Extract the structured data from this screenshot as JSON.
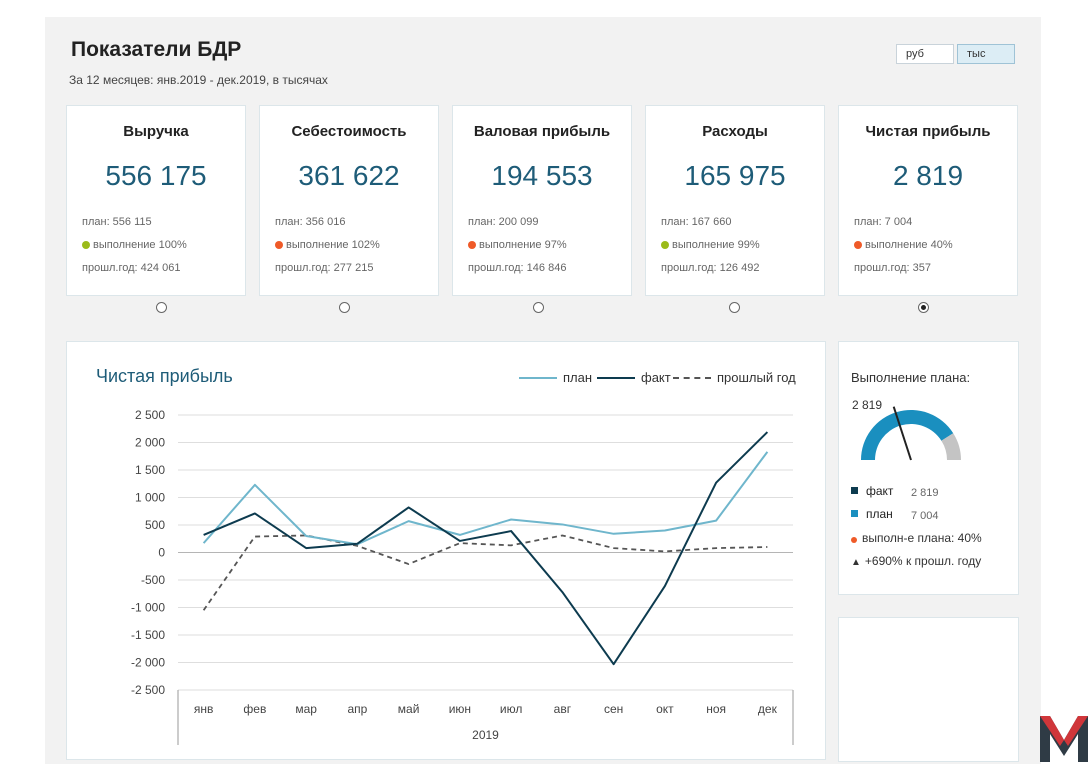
{
  "header": {
    "title": "Показатели БДР",
    "subtitle": "За 12 месяцев: янв.2019 - дек.2019, в тысячах"
  },
  "units": [
    {
      "label": "руб",
      "active": false
    },
    {
      "label": "тыс",
      "active": true
    }
  ],
  "colors": {
    "plan": "#6fb6cc",
    "fact": "#0d3b4f",
    "prev": "#555555",
    "gauge_fill": "#1a8fbf",
    "gauge_rest": "#c4c4c4",
    "ok": "#9bbb1a",
    "bad": "#ef5a28",
    "value": "#1e5c78"
  },
  "kpis": [
    {
      "title": "Выручка",
      "value": "556 175",
      "plan": "план: 556 115",
      "completion": "выполнение 100%",
      "status": "ok",
      "prev": "прошл.год: 424 061",
      "selected": false
    },
    {
      "title": "Себестоимость",
      "value": "361 622",
      "plan": "план: 356 016",
      "completion": "выполнение 102%",
      "status": "bad",
      "prev": "прошл.год: 277 215",
      "selected": false
    },
    {
      "title": "Валовая прибыль",
      "value": "194 553",
      "plan": "план: 200 099",
      "completion": "выполнение 97%",
      "status": "bad",
      "prev": "прошл.год: 146 846",
      "selected": false
    },
    {
      "title": "Расходы",
      "value": "165 975",
      "plan": "план: 167 660",
      "completion": "выполнение 99%",
      "status": "ok",
      "prev": "прошл.год: 126 492",
      "selected": false
    },
    {
      "title": "Чистая прибыль",
      "value": "2 819",
      "plan": "план: 7 004",
      "completion": "выполнение 40%",
      "status": "bad",
      "prev": "прошл.год: 357",
      "selected": true
    }
  ],
  "chart_data": {
    "type": "line",
    "title": "Чистая прибыль",
    "categories": [
      "янв",
      "фев",
      "мар",
      "апр",
      "май",
      "июн",
      "июл",
      "авг",
      "сен",
      "окт",
      "ноя",
      "дек"
    ],
    "xlabel": "2019",
    "ylim": [
      -2500,
      2500
    ],
    "yticks": [
      2500,
      2000,
      1500,
      1000,
      500,
      0,
      -500,
      -1000,
      -1500,
      -2000,
      -2500
    ],
    "ytick_labels": [
      "2 500",
      "2 000",
      "1 500",
      "1 000",
      "500",
      "0",
      "-500",
      "-1 000",
      "-1 500",
      "-2 000",
      "-2 500"
    ],
    "grid": true,
    "legend": "top-right",
    "series": [
      {
        "name": "план",
        "values": [
          170,
          1230,
          300,
          150,
          570,
          320,
          600,
          510,
          340,
          400,
          580,
          1830
        ]
      },
      {
        "name": "факт",
        "values": [
          320,
          710,
          80,
          160,
          820,
          210,
          390,
          -720,
          -2030,
          -610,
          1270,
          2190
        ]
      },
      {
        "name": "прошлый год",
        "values": [
          -1050,
          290,
          310,
          120,
          -210,
          170,
          130,
          310,
          80,
          20,
          80,
          100
        ]
      }
    ]
  },
  "gauge": {
    "title": "Выполнение плана:",
    "value_label": "2 819",
    "fraction": 0.4,
    "rows": [
      {
        "label": "факт",
        "value": "2 819"
      },
      {
        "label": "план",
        "value": "7 004"
      }
    ],
    "completion": "выполн-е плана: 40%",
    "growth": "+690% к прошл. году"
  }
}
